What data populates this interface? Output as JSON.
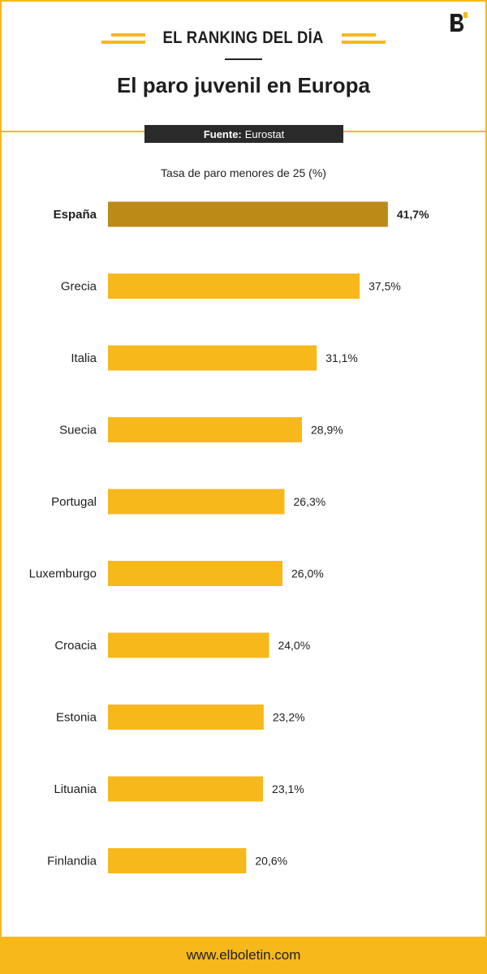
{
  "header": {
    "kicker": "EL RANKING DEL DÍA",
    "title": "El paro juvenil en Europa",
    "source_label": "Fuente:",
    "source_value": "Eurostat",
    "logo_icon": "elboletin-logo-icon"
  },
  "colors": {
    "accent": "#f6b81b",
    "highlight_bar": "#bb8a17",
    "bar": "#f6b81b",
    "text": "#1e1e1e"
  },
  "chart_data": {
    "type": "bar",
    "orientation": "horizontal",
    "title": "Tasa de paro menores de 25 (%)",
    "categories": [
      "España",
      "Grecia",
      "Italia",
      "Suecia",
      "Portugal",
      "Luxemburgo",
      "Croacia",
      "Estonia",
      "Lituania",
      "Finlandia"
    ],
    "values": [
      41.7,
      37.5,
      31.1,
      28.9,
      26.3,
      26.0,
      24.0,
      23.2,
      23.1,
      20.6
    ],
    "value_labels": [
      "41,7%",
      "37,5%",
      "31,1%",
      "28,9%",
      "26,3%",
      "26,0%",
      "24,0%",
      "23,2%",
      "23,1%",
      "20,6%"
    ],
    "highlight": "España",
    "grid": false,
    "legend": "none"
  },
  "footer": {
    "url": "www.elboletin.com"
  }
}
